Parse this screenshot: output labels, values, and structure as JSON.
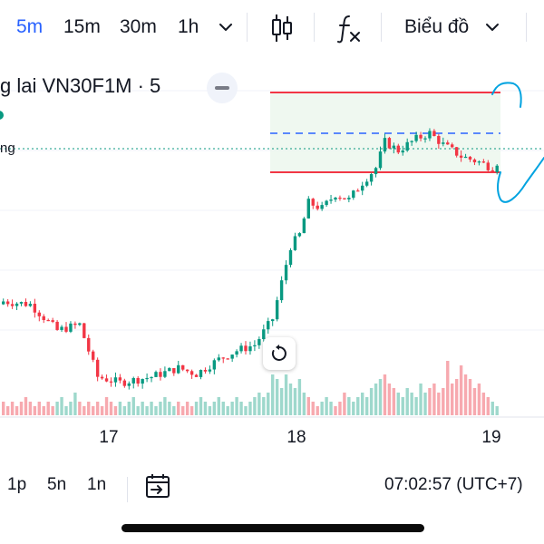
{
  "toolbar": {
    "intervals": [
      "5m",
      "15m",
      "30m",
      "1h"
    ],
    "active_interval": "5m",
    "chart_type_label": "Biểu đồ",
    "icons": [
      "chevron-down-icon",
      "candlestick-icon",
      "indicators-fx-icon",
      "chevron-down-icon"
    ]
  },
  "legend": {
    "title": "g lai VN30F1M · 5",
    "sub": "ng"
  },
  "x_axis": {
    "labels": [
      "17",
      "18",
      "19"
    ]
  },
  "bottom_bar": {
    "ranges": [
      "1p",
      "5n",
      "1n"
    ],
    "time": "07:02:57 (UTC+7)"
  },
  "colors": {
    "up": "#089981",
    "down": "#f23645",
    "accent": "#2962ff",
    "zone_fill": "#e8f5e9"
  },
  "chart_data": {
    "type": "candlestick",
    "title": "",
    "xlabel": "",
    "ylabel": "",
    "x_tick_labels": [
      "17",
      "18",
      "19"
    ],
    "price_range": [
      0,
      100
    ],
    "description_levels": {
      "range_high": 88,
      "range_mid": 80.5,
      "range_low": 71,
      "last_price_dotted": 77
    },
    "anchors": [
      {
        "i": 0,
        "p": 28
      },
      {
        "i": 6,
        "p": 27
      },
      {
        "i": 12,
        "p": 18
      },
      {
        "i": 17,
        "p": 20
      },
      {
        "i": 21,
        "p": 2
      },
      {
        "i": 26,
        "p": 0
      },
      {
        "i": 33,
        "p": 2
      },
      {
        "i": 39,
        "p": 5
      },
      {
        "i": 43,
        "p": 3
      },
      {
        "i": 48,
        "p": 8
      },
      {
        "i": 52,
        "p": 11
      },
      {
        "i": 56,
        "p": 13
      },
      {
        "i": 60,
        "p": 22
      },
      {
        "i": 64,
        "p": 47
      },
      {
        "i": 66,
        "p": 51
      },
      {
        "i": 68,
        "p": 62
      },
      {
        "i": 71,
        "p": 60
      },
      {
        "i": 74,
        "p": 65
      },
      {
        "i": 77,
        "p": 63
      },
      {
        "i": 80,
        "p": 69
      },
      {
        "i": 83,
        "p": 74
      },
      {
        "i": 85,
        "p": 83
      },
      {
        "i": 88,
        "p": 80
      },
      {
        "i": 92,
        "p": 84
      },
      {
        "i": 95,
        "p": 86
      },
      {
        "i": 98,
        "p": 82
      },
      {
        "i": 102,
        "p": 78
      },
      {
        "i": 106,
        "p": 76
      },
      {
        "i": 109,
        "p": 74
      },
      {
        "i": 110,
        "p": 76
      }
    ],
    "volume": {
      "levels": [
        3,
        2,
        3,
        2,
        3,
        4,
        3,
        2,
        3,
        2,
        3,
        2,
        3,
        4,
        2,
        3,
        5,
        3,
        2,
        3,
        2,
        3,
        2,
        4,
        3,
        2,
        3,
        2,
        3,
        4,
        2,
        3,
        2,
        3,
        2,
        3,
        4,
        3,
        2,
        3,
        2,
        3,
        2,
        3,
        4,
        3,
        2,
        3,
        4,
        3,
        2,
        3,
        4,
        3,
        2,
        3,
        4,
        5,
        4,
        5,
        9,
        8,
        6,
        9,
        7,
        6,
        8,
        5,
        4,
        3,
        2,
        3,
        4,
        3,
        2,
        3,
        5,
        4,
        3,
        4,
        5,
        4,
        6,
        7,
        8,
        9,
        7,
        6,
        5,
        4,
        6,
        5,
        4,
        7,
        5,
        6,
        7,
        5,
        6,
        12,
        7,
        8,
        11,
        9,
        8,
        6,
        7,
        5,
        4,
        3,
        2
      ],
      "scale": [
        0,
        20
      ]
    }
  }
}
